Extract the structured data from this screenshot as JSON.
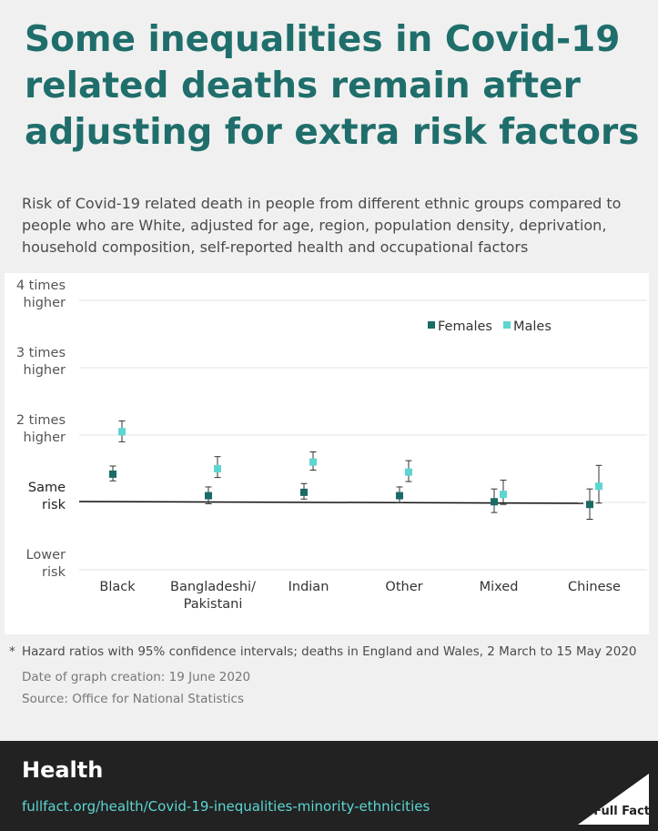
{
  "title": "Some inequalities in Covid-19 related deaths remain after adjusting for extra risk factors",
  "subtitle": "Risk of Covid-19 related death in people from different ethnic groups compared to people who are White, adjusted for age, region, population density, deprivation, household composition, self-reported health and occupational factors",
  "notes": {
    "star": "*",
    "main": "Hazard ratios with 95% confidence intervals; deaths in England and Wales, 2 March to 15 May 2020",
    "date": "Date of graph creation: 19 June 2020",
    "source": "Source: Office for National Statistics"
  },
  "footer": {
    "section": "Health",
    "url": "fullfact.org/health/Covid-19-inequalities-minority-ethnicities",
    "logo_text": "Full Fact"
  },
  "colors": {
    "title": "#1f6e6b",
    "females": "#1a6b66",
    "males": "#5cd6d2",
    "footer_bg": "#222222",
    "link": "#5cd6d2"
  },
  "chart_data": {
    "type": "scatter",
    "categories": [
      "Black",
      "Bangladeshi/ Pakistani",
      "Indian",
      "Other",
      "Mixed",
      "Chinese"
    ],
    "y_ticks": [
      {
        "value": 0,
        "label": [
          "Lower",
          "risk"
        ]
      },
      {
        "value": 1,
        "label": [
          "Same",
          "risk"
        ]
      },
      {
        "value": 2,
        "label": [
          "2 times",
          "higher"
        ]
      },
      {
        "value": 3,
        "label": [
          "3 times",
          "higher"
        ]
      },
      {
        "value": 4,
        "label": [
          "4 times",
          "higher"
        ]
      }
    ],
    "ylim": [
      0,
      4
    ],
    "reference_line": 1,
    "legend_position": "top-right",
    "series": [
      {
        "name": "Females",
        "values": [
          1.42,
          1.1,
          1.15,
          1.1,
          1.01,
          0.97
        ],
        "lower": [
          1.32,
          0.98,
          1.05,
          1.0,
          0.85,
          0.75
        ],
        "upper": [
          1.54,
          1.23,
          1.28,
          1.23,
          1.2,
          1.2
        ]
      },
      {
        "name": "Males",
        "values": [
          2.05,
          1.5,
          1.6,
          1.45,
          1.12,
          1.24
        ],
        "lower": [
          1.9,
          1.37,
          1.48,
          1.31,
          0.97,
          0.99
        ],
        "upper": [
          2.21,
          1.68,
          1.75,
          1.62,
          1.33,
          1.55
        ]
      }
    ]
  }
}
